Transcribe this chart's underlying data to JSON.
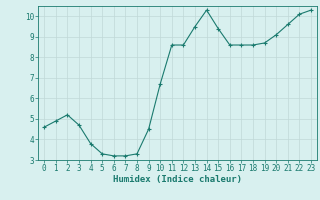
{
  "x": [
    0,
    1,
    2,
    3,
    4,
    5,
    6,
    7,
    8,
    9,
    10,
    11,
    12,
    13,
    14,
    15,
    16,
    17,
    18,
    19,
    20,
    21,
    22,
    23
  ],
  "y": [
    4.6,
    4.9,
    5.2,
    4.7,
    3.8,
    3.3,
    3.2,
    3.2,
    3.3,
    4.5,
    6.7,
    8.6,
    8.6,
    9.5,
    10.3,
    9.4,
    8.6,
    8.6,
    8.6,
    8.7,
    9.1,
    9.6,
    10.1,
    10.3
  ],
  "line_color": "#1a7a6e",
  "marker": "+",
  "marker_size": 4,
  "bg_color": "#d8f0ef",
  "grid_color": "#c0d8d8",
  "xlabel": "Humidex (Indice chaleur)",
  "xlabel_fontsize": 6.5,
  "tick_fontsize": 5.5,
  "ylim": [
    3,
    10.5
  ],
  "xlim": [
    -0.5,
    23.5
  ],
  "yticks": [
    3,
    4,
    5,
    6,
    7,
    8,
    9,
    10
  ],
  "xticks": [
    0,
    1,
    2,
    3,
    4,
    5,
    6,
    7,
    8,
    9,
    10,
    11,
    12,
    13,
    14,
    15,
    16,
    17,
    18,
    19,
    20,
    21,
    22,
    23
  ]
}
